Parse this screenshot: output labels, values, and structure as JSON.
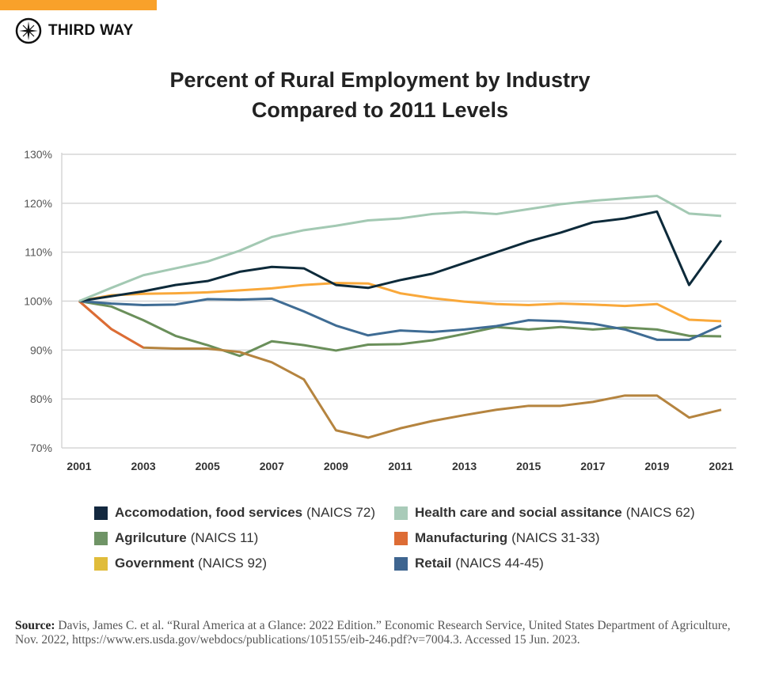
{
  "brand": {
    "name": "THIRD WAY",
    "accent": "#f9a12a",
    "icon": "compass-star-icon"
  },
  "title": [
    "Percent of Rural Employment by Industry",
    "Compared to 2011 Levels"
  ],
  "chart_data": {
    "type": "line",
    "title": "Percent of Rural Employment by Industry Compared to 2011 Levels",
    "xlabel": "",
    "ylabel": "",
    "x": [
      2001,
      2002,
      2003,
      2004,
      2005,
      2006,
      2007,
      2008,
      2009,
      2010,
      2011,
      2012,
      2013,
      2014,
      2015,
      2016,
      2017,
      2018,
      2019,
      2020,
      2021
    ],
    "x_tick_labels": [
      "2001",
      "2003",
      "2005",
      "2007",
      "2009",
      "2011",
      "2013",
      "2015",
      "2017",
      "2019",
      "2021"
    ],
    "y_tick_labels": [
      "130%",
      "120%",
      "110%",
      "100%",
      "90%",
      "80%",
      "70%"
    ],
    "ylim": [
      70,
      130
    ],
    "grid": "horizontal",
    "legend_position": "bottom",
    "series": [
      {
        "name": "Accomodation, food services",
        "code": "(NAICS 72)",
        "color": "#13283f",
        "line_color": "#0d2a3a",
        "values": [
          100,
          101,
          102,
          103.3,
          104.1,
          106,
          107,
          106.7,
          103.3,
          102.7,
          104.3,
          105.6,
          107.8,
          110,
          112.2,
          114,
          116.1,
          116.9,
          118.3,
          103.3,
          112.4
        ]
      },
      {
        "name": "Health care and social assitance",
        "code": "(NAICS 62)",
        "color": "#a9cbb9",
        "line_color": "#a3c9b3",
        "values": [
          100,
          102.7,
          105.3,
          106.7,
          108.1,
          110.3,
          113.1,
          114.5,
          115.4,
          116.5,
          116.9,
          117.8,
          118.2,
          117.8,
          118.8,
          119.8,
          120.5,
          121,
          121.5,
          117.9,
          117.4
        ]
      },
      {
        "name": "Agrilcuture",
        "code": "(NAICS 11)",
        "color": "#6f9466",
        "line_color": "#6a8f5a",
        "values": [
          100,
          98.9,
          96.1,
          92.9,
          91,
          88.8,
          91.8,
          91,
          89.9,
          91.1,
          91.2,
          92,
          93.3,
          94.7,
          94.2,
          94.7,
          94.2,
          94.6,
          94.2,
          92.9,
          92.8
        ]
      },
      {
        "name": "Manufacturing",
        "code": "(NAICS 31-33)",
        "color": "#dd6c35",
        "line_color": "#b5843f",
        "values": [
          100,
          94.3,
          90.5,
          90.3,
          90.3,
          89.6,
          87.5,
          84,
          73.6,
          72.1,
          74,
          75.5,
          76.7,
          77.8,
          78.6,
          78.6,
          79.4,
          80.7,
          80.7,
          76.2,
          77.8
        ]
      },
      {
        "name": "Government",
        "code": "(NAICS 92)",
        "color": "#e0bc3a",
        "line_color": "#f9a83a",
        "values": [
          100,
          101.2,
          101.5,
          101.6,
          101.8,
          102.2,
          102.6,
          103.3,
          103.7,
          103.6,
          101.6,
          100.6,
          99.9,
          99.4,
          99.2,
          99.5,
          99.3,
          99,
          99.4,
          96.2,
          95.9
        ]
      },
      {
        "name": "Retail",
        "code": "(NAICS 44-45)",
        "color": "#3e6590",
        "line_color": "#3f6c94",
        "values": [
          100,
          99.5,
          99.2,
          99.3,
          100.4,
          100.3,
          100.5,
          97.9,
          95,
          93,
          94,
          93.7,
          94.2,
          94.9,
          96.1,
          95.9,
          95.4,
          94.2,
          92.1,
          92.1,
          95
        ]
      }
    ]
  },
  "source": {
    "label": "Source:",
    "text": "Davis, James C. et al. “Rural America at a Glance: 2022 Edition.” Economic Research Service, United States Department of Agriculture, Nov. 2022, https://www.ers.usda.gov/webdocs/publications/105155/eib-246.pdf?v=7004.3. Accessed 15 Jun. 2023."
  }
}
